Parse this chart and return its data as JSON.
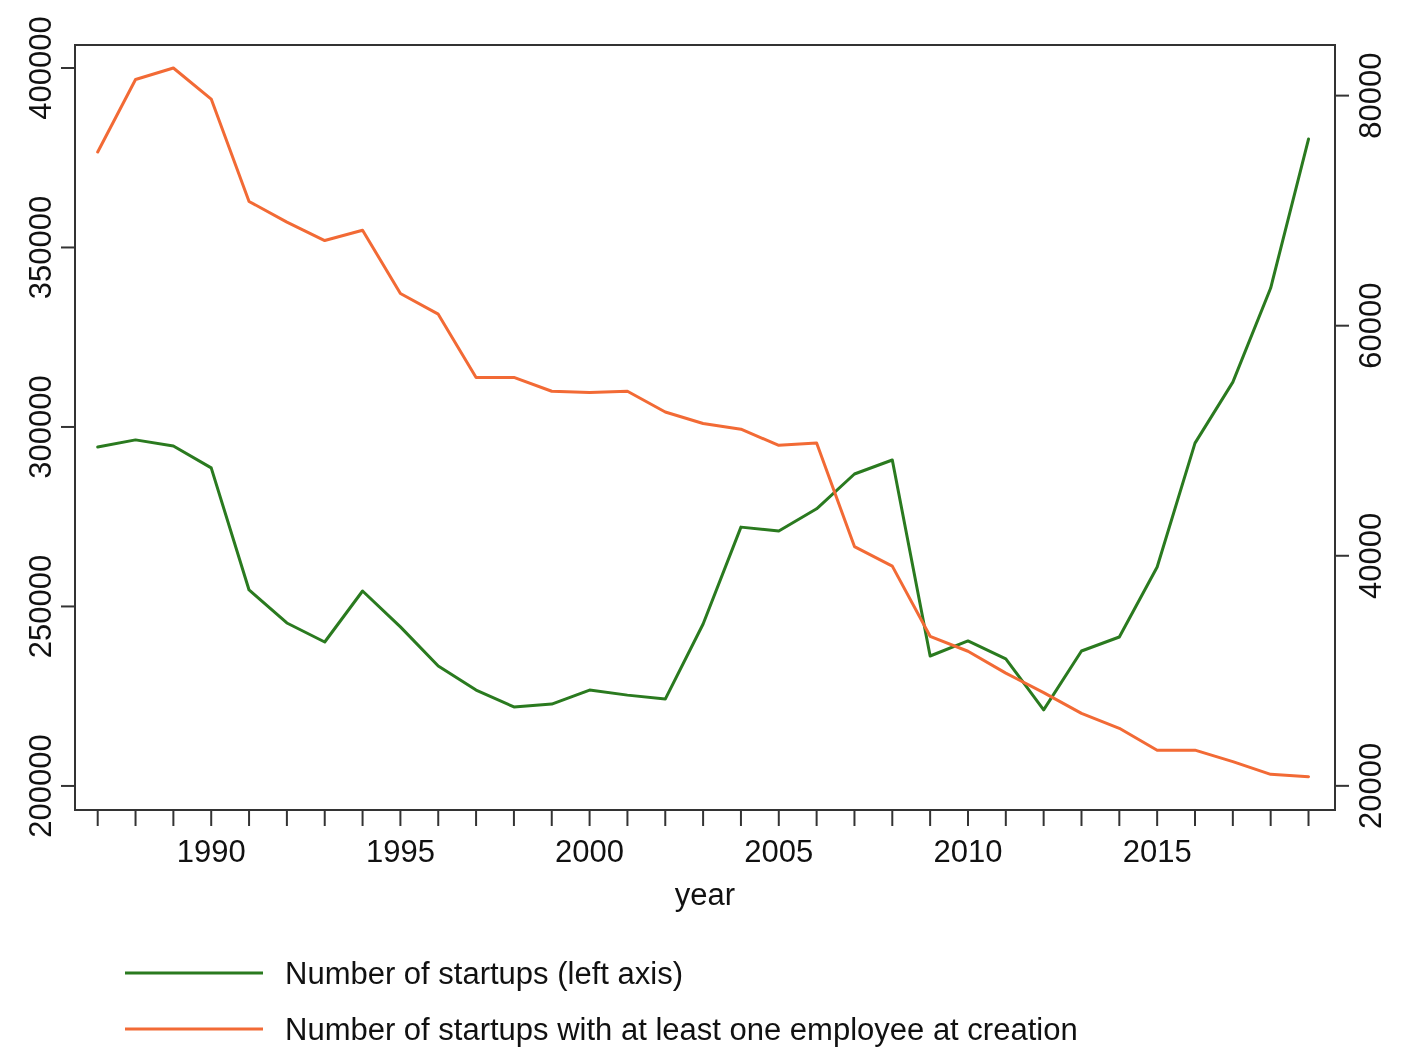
{
  "chart_data": {
    "type": "line",
    "xlabel": "year",
    "x": [
      1987,
      1988,
      1989,
      1990,
      1991,
      1992,
      1993,
      1994,
      1995,
      1996,
      1997,
      1998,
      1999,
      2000,
      2001,
      2002,
      2003,
      2004,
      2005,
      2006,
      2007,
      2008,
      2009,
      2010,
      2011,
      2012,
      2013,
      2014,
      2015,
      2016,
      2017,
      2018,
      2019
    ],
    "series": [
      {
        "name": "Number of startups (left axis)",
        "color": "#2a7a1f",
        "values": [
          294400,
          296400,
          294700,
          288600,
          254600,
          245400,
          240100,
          254300,
          244300,
          233400,
          226700,
          222000,
          222800,
          226700,
          225300,
          224200,
          245100,
          272100,
          271000,
          277200,
          286900,
          290800,
          236200,
          240400,
          235400,
          221200,
          237600,
          241500,
          261000,
          295500,
          312500,
          338700,
          380200
        ]
      },
      {
        "name": "Number of startups with at least one employee at creation",
        "color": "#f26a35",
        "axis": "y2",
        "values": [
          75100,
          81400,
          82400,
          79700,
          70800,
          69000,
          67400,
          68300,
          62800,
          61000,
          55500,
          55500,
          54300,
          54200,
          54300,
          52500,
          51500,
          51000,
          49600,
          49800,
          40800,
          39100,
          33000,
          31700,
          29800,
          28100,
          26300,
          25000,
          23100,
          23100,
          22100,
          21000,
          20800
        ]
      }
    ],
    "xlim": [
      1986.4,
      2019.7
    ],
    "xticks": [
      {
        "value": 1987,
        "label": null
      },
      {
        "value": 1988,
        "label": null
      },
      {
        "value": 1989,
        "label": null
      },
      1990,
      {
        "value": 1991,
        "label": null
      },
      {
        "value": 1992,
        "label": null
      },
      {
        "value": 1993,
        "label": null
      },
      {
        "value": 1994,
        "label": null
      },
      1995,
      {
        "value": 1996,
        "label": null
      },
      {
        "value": 1997,
        "label": null
      },
      {
        "value": 1998,
        "label": null
      },
      {
        "value": 1999,
        "label": null
      },
      2000,
      {
        "value": 2001,
        "label": null
      },
      {
        "value": 2002,
        "label": null
      },
      {
        "value": 2003,
        "label": null
      },
      {
        "value": 2004,
        "label": null
      },
      2005,
      {
        "value": 2006,
        "label": null
      },
      {
        "value": 2007,
        "label": null
      },
      {
        "value": 2008,
        "label": null
      },
      {
        "value": 2009,
        "label": null
      },
      2010,
      {
        "value": 2011,
        "label": null
      },
      {
        "value": 2012,
        "label": null
      },
      {
        "value": 2013,
        "label": null
      },
      {
        "value": 2014,
        "label": null
      },
      2015,
      {
        "value": 2016,
        "label": null
      },
      {
        "value": 2017,
        "label": null
      },
      {
        "value": 2018,
        "label": null
      },
      {
        "value": 2019,
        "label": null
      }
    ],
    "ylim": [
      193300,
      406400
    ],
    "yticks": [
      200000,
      250000,
      300000,
      350000,
      400000
    ],
    "y2lim": [
      17900,
      84400
    ],
    "y2ticks": [
      20000,
      40000,
      60000,
      80000
    ],
    "grid": false,
    "legend": "bottom",
    "marker": "none",
    "line_style": "solid"
  }
}
